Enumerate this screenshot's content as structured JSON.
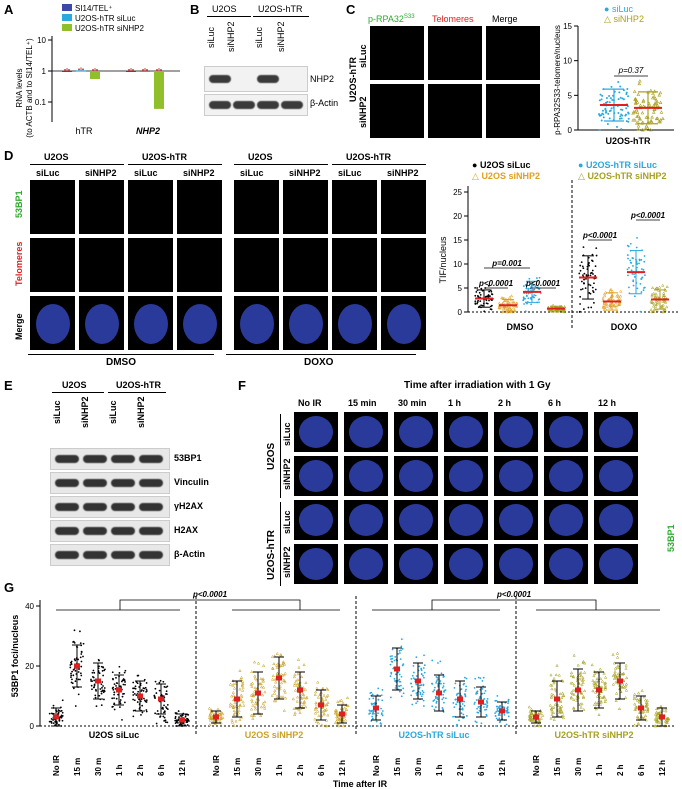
{
  "panels": {
    "A": {
      "label": "A",
      "legend": [
        "SI14/TEL⁺",
        "U2OS-hTR siLuc",
        "U2OS-hTR siNHP2"
      ],
      "colors": [
        "#3b4aa8",
        "#29a9e0",
        "#8fbf2a"
      ],
      "ylabel_line1": "RNA levels",
      "ylabel_line2": "(to ACTB and to SI14/TEL⁺)",
      "yticks": [
        "10",
        "1",
        "0.1"
      ],
      "groups": [
        "hTR",
        "NHP2"
      ]
    },
    "B": {
      "label": "B",
      "cell_lines": [
        "U2OS",
        "U2OS-hTR"
      ],
      "lanes": [
        "siLuc",
        "siNHP2",
        "siLuc",
        "siNHP2"
      ],
      "proteins": [
        "NHP2",
        "β-Actin"
      ]
    },
    "C": {
      "label": "C",
      "columns": [
        "p-RPA32",
        "S33",
        "Telomeres",
        "Merge"
      ],
      "row_group": "U2OS-hTR",
      "rows": [
        "siLuc",
        "siNHP2"
      ],
      "legend": [
        "siLuc",
        "siNHP2"
      ],
      "ylabel": "p-RPA32S33-telomere/nucleus",
      "yticks": [
        "15",
        "10",
        "5",
        "0"
      ],
      "pvalue": "p=0.37",
      "xlabel": "U2OS-hTR"
    },
    "D": {
      "label": "D",
      "cell_lines": [
        "U2OS",
        "U2OS-hTR",
        "U2OS",
        "U2OS-hTR"
      ],
      "lanes": [
        "siLuc",
        "siNHP2",
        "siLuc",
        "siNHP2",
        "siLuc",
        "siNHP2",
        "siLuc",
        "siNHP2"
      ],
      "rows": [
        "53BP1",
        "Telomeres",
        "Merge"
      ],
      "treatments": [
        "DMSO",
        "DOXO"
      ],
      "legend_left": [
        "U2OS siLuc",
        "U2OS siNHP2"
      ],
      "legend_right": [
        "U2OS-hTR siLuc",
        "U2OS-hTR siNHP2"
      ],
      "ylabel": "TIF/nucleus",
      "yticks": [
        "25",
        "20",
        "15",
        "10",
        "5",
        "0"
      ],
      "pvalues": [
        "p=0.001",
        "p<0.0001",
        "p<0.0001",
        "p<0.0001",
        "p<0.0001"
      ],
      "xlabels": [
        "DMSO",
        "DOXO"
      ]
    },
    "E": {
      "label": "E",
      "cell_lines": [
        "U2OS",
        "U2OS-hTR"
      ],
      "lanes": [
        "siLuc",
        "siNHP2",
        "siLuc",
        "siNHP2"
      ],
      "proteins": [
        "53BP1",
        "Vinculin",
        "γH2AX",
        "H2AX",
        "β-Actin"
      ]
    },
    "F": {
      "label": "F",
      "title": "Time after irradiation with 1 Gy",
      "timepoints": [
        "No IR",
        "15 min",
        "30 min",
        "1 h",
        "2 h",
        "6 h",
        "12 h"
      ],
      "row_groups": [
        "U2OS",
        "U2OS-hTR"
      ],
      "rows": [
        "siLuc",
        "siNHP2",
        "siLuc",
        "siNHP2"
      ],
      "channel": "53BP1"
    },
    "G": {
      "label": "G",
      "ylabel": "53BP1 foci/nucleus",
      "yticks": [
        "40",
        "20",
        "0"
      ],
      "xlabel": "Time after IR",
      "pvalues": [
        "p<0.0001",
        "p<0.0001"
      ],
      "times": [
        "No IR",
        "15 m",
        "30 m",
        "1 h",
        "2 h",
        "6 h",
        "12 h"
      ],
      "conditions": [
        "U2OS siLuc",
        "U2OS siNHP2",
        "U2OS-hTR siLuc",
        "U2OS-hTR siNHP2"
      ],
      "condition_colors": [
        "#000000",
        "#c9a227",
        "#29a9e0",
        "#a8a020"
      ]
    }
  },
  "chart_data": [
    {
      "type": "bar",
      "panel": "A",
      "categories": [
        "hTR",
        "NHP2"
      ],
      "series": [
        {
          "name": "SI14/TEL⁺",
          "values": [
            1.0,
            1.0
          ]
        },
        {
          "name": "U2OS-hTR siLuc",
          "values": [
            1.05,
            0.95
          ]
        },
        {
          "name": "U2OS-hTR siNHP2",
          "values": [
            0.55,
            0.06
          ]
        }
      ],
      "ylabel": "RNA levels (to ACTB and to SI14/TEL⁺)",
      "yscale": "log",
      "ylim": [
        0.05,
        10
      ]
    },
    {
      "type": "scatter",
      "panel": "C",
      "categories": [
        "siLuc",
        "siNHP2"
      ],
      "means": [
        3.6,
        3.2
      ],
      "sd": [
        2.3,
        2.3
      ],
      "ylim": [
        0,
        15
      ],
      "ylabel": "p-RPA32S33-telomere/nucleus",
      "xlabel": "U2OS-hTR"
    },
    {
      "type": "scatter",
      "panel": "D",
      "groups": [
        "DMSO",
        "DOXO"
      ],
      "series": [
        {
          "name": "U2OS siLuc",
          "means": [
            2.8,
            7.2
          ],
          "sd": [
            1.8,
            4.5
          ]
        },
        {
          "name": "U2OS siNHP2",
          "means": [
            1.4,
            2.2
          ],
          "sd": [
            1.2,
            1.8
          ]
        },
        {
          "name": "U2OS-hTR siLuc",
          "means": [
            4.2,
            8.3
          ],
          "sd": [
            2.2,
            4.5
          ]
        },
        {
          "name": "U2OS-hTR siNHP2",
          "means": [
            0.7,
            2.6
          ],
          "sd": [
            0.5,
            2.0
          ]
        }
      ],
      "ylim": [
        0,
        25
      ],
      "ylabel": "TIF/nucleus"
    },
    {
      "type": "scatter",
      "panel": "G",
      "x": [
        "No IR",
        "15 m",
        "30 m",
        "1 h",
        "2 h",
        "6 h",
        "12 h"
      ],
      "series": [
        {
          "name": "U2OS siLuc",
          "means": [
            3,
            20,
            15,
            12,
            10,
            9,
            2
          ],
          "sd": [
            3,
            7,
            6,
            5,
            5,
            5,
            2
          ]
        },
        {
          "name": "U2OS siNHP2",
          "means": [
            3,
            9,
            11,
            16,
            12,
            7,
            4
          ],
          "sd": [
            2,
            6,
            7,
            7,
            6,
            5,
            3
          ]
        },
        {
          "name": "U2OS-hTR siLuc",
          "means": [
            6,
            19,
            15,
            11,
            9,
            8,
            5
          ],
          "sd": [
            4,
            7,
            6,
            6,
            6,
            5,
            3
          ]
        },
        {
          "name": "U2OS-hTR siNHP2",
          "means": [
            3,
            9,
            12,
            12,
            15,
            6,
            3
          ],
          "sd": [
            2,
            6,
            7,
            6,
            6,
            4,
            3
          ]
        }
      ],
      "ylim": [
        0,
        40
      ],
      "ylabel": "53BP1 foci/nucleus",
      "xlabel": "Time after IR"
    }
  ]
}
